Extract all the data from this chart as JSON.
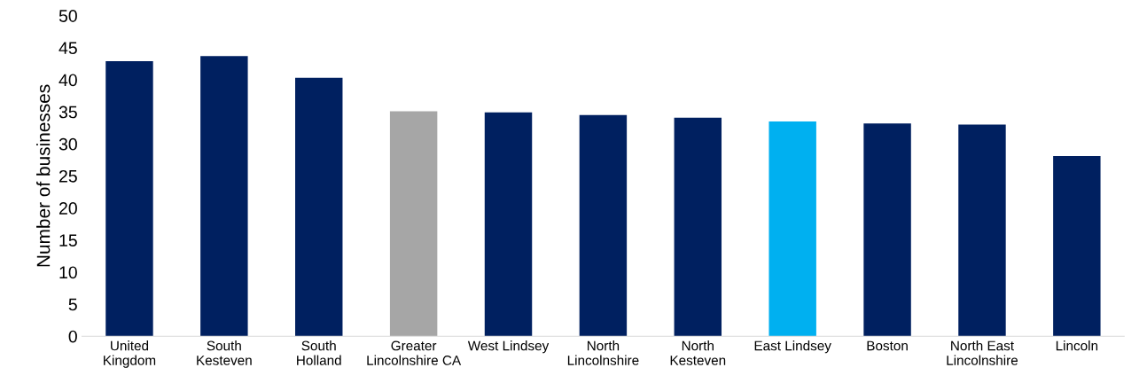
{
  "chart_data": {
    "type": "bar",
    "ylabel": "Number of businesses",
    "categories": [
      "United Kingdom",
      "South Kesteven",
      "South Holland",
      "Greater Lincolnshire CA",
      "West Lindsey",
      "North Lincolnshire",
      "North Kesteven",
      "East Lindsey",
      "Boston",
      "North East Lincolnshire",
      "Lincoln"
    ],
    "values": [
      42.9,
      43.7,
      40.3,
      35.1,
      34.9,
      34.5,
      34.1,
      33.5,
      33.2,
      33.0,
      28.1
    ],
    "colors": [
      "#002060",
      "#002060",
      "#002060",
      "#a6a6a6",
      "#002060",
      "#002060",
      "#002060",
      "#00b0f0",
      "#002060",
      "#002060",
      "#002060"
    ],
    "ylim": [
      0,
      50
    ],
    "yticks": [
      0,
      5,
      10,
      15,
      20,
      25,
      30,
      35,
      40,
      45,
      50
    ],
    "grid": false
  }
}
